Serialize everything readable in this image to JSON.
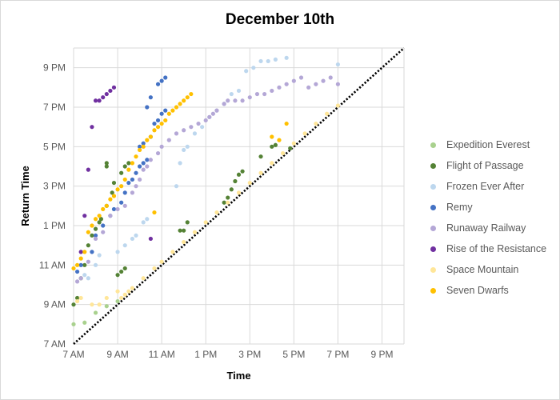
{
  "chart_data": {
    "type": "scatter",
    "title": "December 10th",
    "xlabel": "Time",
    "ylabel": "Return Time",
    "x_ticks": [
      "7 AM",
      "9 AM",
      "11 AM",
      "1 PM",
      "3 PM",
      "5 PM",
      "7 PM",
      "9 PM"
    ],
    "y_ticks": [
      "7 AM",
      "9 AM",
      "11 AM",
      "1 PM",
      "3 PM",
      "5 PM",
      "7 PM",
      "9 PM"
    ],
    "xlim": [
      "7 AM",
      "10 PM"
    ],
    "ylim": [
      "7 AM",
      "10 PM"
    ],
    "grid": true,
    "legend_position": "right",
    "reference_line": {
      "style": "dotted",
      "color": "#000000",
      "from": [
        "7:00",
        "7:00"
      ],
      "to": [
        "22:00",
        "22:00"
      ]
    },
    "series": [
      {
        "name": "Expedition Everest",
        "color": "#a9d18e",
        "points": [
          [
            "7:00",
            "8:00"
          ],
          [
            "7:30",
            "8:05"
          ],
          [
            "8:00",
            "8:35"
          ],
          [
            "8:30",
            "8:55"
          ],
          [
            "9:00",
            "9:10"
          ]
        ]
      },
      {
        "name": "Flight of Passage",
        "color": "#548235",
        "points": [
          [
            "7:00",
            "9:00"
          ],
          [
            "7:10",
            "9:20"
          ],
          [
            "7:20",
            "10:20"
          ],
          [
            "7:30",
            "11:00"
          ],
          [
            "7:40",
            "12:00"
          ],
          [
            "7:50",
            "12:30"
          ],
          [
            "8:00",
            "12:50"
          ],
          [
            "8:10",
            "13:10"
          ],
          [
            "8:15",
            "13:20"
          ],
          [
            "8:30",
            "16:00"
          ],
          [
            "8:30",
            "16:10"
          ],
          [
            "8:30",
            "14:00"
          ],
          [
            "8:45",
            "14:40"
          ],
          [
            "8:50",
            "14:70"
          ],
          [
            "9:10",
            "15:40"
          ],
          [
            "9:20",
            "16:00"
          ],
          [
            "9:30",
            "16:10"
          ],
          [
            "9:00",
            "10:30"
          ],
          [
            "9:10",
            "10:40"
          ],
          [
            "9:20",
            "10:50"
          ],
          [
            "11:50",
            "12:45"
          ],
          [
            "12:00",
            "12:45"
          ],
          [
            "12:10",
            "13:10"
          ],
          [
            "13:50",
            "14:10"
          ],
          [
            "14:00",
            "14:25"
          ],
          [
            "14:10",
            "14:50"
          ],
          [
            "14:20",
            "15:15"
          ],
          [
            "14:30",
            "15:35"
          ],
          [
            "14:40",
            "15:45"
          ],
          [
            "15:30",
            "16:30"
          ],
          [
            "16:00",
            "17:00"
          ],
          [
            "16:10",
            "17:05"
          ],
          [
            "16:50",
            "16:55"
          ]
        ]
      },
      {
        "name": "Frozen Ever After",
        "color": "#bdd7ee",
        "points": [
          [
            "7:30",
            "10:30"
          ],
          [
            "7:40",
            "10:20"
          ],
          [
            "8:00",
            "11:00"
          ],
          [
            "8:10",
            "11:30"
          ],
          [
            "9:00",
            "11:40"
          ],
          [
            "9:20",
            "12:00"
          ],
          [
            "9:40",
            "12:20"
          ],
          [
            "9:50",
            "12:30"
          ],
          [
            "10:10",
            "13:10"
          ],
          [
            "10:20",
            "13:20"
          ],
          [
            "11:40",
            "15:00"
          ],
          [
            "11:50",
            "16:10"
          ],
          [
            "12:00",
            "16:50"
          ],
          [
            "12:10",
            "17:00"
          ],
          [
            "12:30",
            "17:40"
          ],
          [
            "12:50",
            "18:00"
          ],
          [
            "13:10",
            "18:30"
          ],
          [
            "13:30",
            "18:50"
          ],
          [
            "13:50",
            "19:10"
          ],
          [
            "14:10",
            "19:40"
          ],
          [
            "14:30",
            "19:50"
          ],
          [
            "14:50",
            "20:50"
          ],
          [
            "15:10",
            "21:00"
          ],
          [
            "15:30",
            "21:20"
          ],
          [
            "15:50",
            "21:20"
          ],
          [
            "16:10",
            "21:25"
          ],
          [
            "16:40",
            "21:30"
          ],
          [
            "19:00",
            "21:10"
          ]
        ]
      },
      {
        "name": "Remy",
        "color": "#4472c4",
        "points": [
          [
            "7:10",
            "10:40"
          ],
          [
            "7:20",
            "11:00"
          ],
          [
            "7:50",
            "11:40"
          ],
          [
            "8:00",
            "12:30"
          ],
          [
            "8:20",
            "13:00"
          ],
          [
            "8:40",
            "13:30"
          ],
          [
            "8:50",
            "13:50"
          ],
          [
            "9:10",
            "14:10"
          ],
          [
            "9:20",
            "14:40"
          ],
          [
            "9:30",
            "15:10"
          ],
          [
            "9:40",
            "15:20"
          ],
          [
            "9:50",
            "15:40"
          ],
          [
            "10:00",
            "16:00"
          ],
          [
            "10:10",
            "16:10"
          ],
          [
            "10:20",
            "16:20"
          ],
          [
            "10:00",
            "17:00"
          ],
          [
            "10:10",
            "17:10"
          ],
          [
            "10:30",
            "17:30"
          ],
          [
            "10:40",
            "18:10"
          ],
          [
            "10:50",
            "18:20"
          ],
          [
            "11:00",
            "18:40"
          ],
          [
            "11:10",
            "18:50"
          ],
          [
            "10:20",
            "19:00"
          ],
          [
            "10:30",
            "19:30"
          ],
          [
            "10:50",
            "20:10"
          ],
          [
            "11:00",
            "20:20"
          ],
          [
            "11:10",
            "20:30"
          ]
        ]
      },
      {
        "name": "Runaway Railway",
        "color": "#b4a7d6",
        "points": [
          [
            "7:10",
            "10:10"
          ],
          [
            "7:20",
            "10:20"
          ],
          [
            "7:40",
            "11:10"
          ],
          [
            "8:00",
            "12:20"
          ],
          [
            "8:20",
            "12:40"
          ],
          [
            "8:40",
            "13:30"
          ],
          [
            "9:00",
            "13:50"
          ],
          [
            "9:20",
            "14:00"
          ],
          [
            "9:40",
            "14:40"
          ],
          [
            "9:50",
            "15:00"
          ],
          [
            "10:00",
            "15:20"
          ],
          [
            "10:10",
            "15:50"
          ],
          [
            "10:20",
            "16:00"
          ],
          [
            "10:30",
            "16:20"
          ],
          [
            "10:50",
            "16:40"
          ],
          [
            "11:00",
            "17:00"
          ],
          [
            "11:20",
            "17:20"
          ],
          [
            "11:40",
            "17:40"
          ],
          [
            "12:00",
            "17:50"
          ],
          [
            "12:20",
            "18:00"
          ],
          [
            "12:40",
            "18:10"
          ],
          [
            "13:00",
            "18:20"
          ],
          [
            "13:10",
            "18:30"
          ],
          [
            "13:20",
            "18:40"
          ],
          [
            "13:30",
            "18:50"
          ],
          [
            "13:50",
            "19:10"
          ],
          [
            "14:00",
            "19:20"
          ],
          [
            "14:20",
            "19:20"
          ],
          [
            "14:40",
            "19:20"
          ],
          [
            "15:00",
            "19:30"
          ],
          [
            "15:20",
            "19:40"
          ],
          [
            "15:40",
            "19:40"
          ],
          [
            "16:00",
            "19:50"
          ],
          [
            "16:20",
            "20:00"
          ],
          [
            "16:40",
            "20:10"
          ],
          [
            "17:00",
            "20:20"
          ],
          [
            "17:20",
            "20:30"
          ],
          [
            "17:40",
            "20:00"
          ],
          [
            "18:00",
            "20:10"
          ],
          [
            "18:20",
            "20:20"
          ],
          [
            "18:40",
            "20:30"
          ],
          [
            "19:00",
            "20:10"
          ]
        ]
      },
      {
        "name": "Rise of the Resistance",
        "color": "#7030a0",
        "points": [
          [
            "7:20",
            "11:40"
          ],
          [
            "7:30",
            "13:30"
          ],
          [
            "7:40",
            "15:50"
          ],
          [
            "7:50",
            "18:00"
          ],
          [
            "8:00",
            "19:20"
          ],
          [
            "8:10",
            "19:20"
          ],
          [
            "8:20",
            "19:30"
          ],
          [
            "8:30",
            "19:40"
          ],
          [
            "8:40",
            "19:50"
          ],
          [
            "8:50",
            "20:00"
          ],
          [
            "10:30",
            "12:20"
          ]
        ]
      },
      {
        "name": "Space Mountain",
        "color": "#ffe699",
        "points": [
          [
            "7:10",
            "9:10"
          ],
          [
            "7:20",
            "9:20"
          ],
          [
            "7:50",
            "9:00"
          ],
          [
            "8:10",
            "9:00"
          ],
          [
            "8:30",
            "9:20"
          ],
          [
            "9:00",
            "9:40"
          ],
          [
            "9:10",
            "9:20"
          ],
          [
            "9:20",
            "9:30"
          ],
          [
            "9:30",
            "9:40"
          ],
          [
            "9:40",
            "9:50"
          ],
          [
            "10:10",
            "10:20"
          ],
          [
            "10:40",
            "10:50"
          ],
          [
            "11:00",
            "11:10"
          ],
          [
            "11:30",
            "11:40"
          ],
          [
            "12:00",
            "12:10"
          ],
          [
            "12:30",
            "12:40"
          ],
          [
            "13:00",
            "13:10"
          ],
          [
            "13:30",
            "13:40"
          ],
          [
            "14:00",
            "14:10"
          ],
          [
            "14:30",
            "14:40"
          ],
          [
            "15:00",
            "15:10"
          ],
          [
            "15:30",
            "15:40"
          ],
          [
            "16:00",
            "16:10"
          ],
          [
            "16:30",
            "16:40"
          ],
          [
            "17:00",
            "17:10"
          ],
          [
            "17:30",
            "17:40"
          ],
          [
            "18:00",
            "18:10"
          ],
          [
            "18:30",
            "18:40"
          ],
          [
            "19:00",
            "19:05"
          ]
        ]
      },
      {
        "name": "Seven Dwarfs",
        "color": "#ffc000",
        "points": [
          [
            "7:00",
            "10:50"
          ],
          [
            "7:10",
            "11:00"
          ],
          [
            "7:20",
            "11:20"
          ],
          [
            "7:30",
            "11:40"
          ],
          [
            "7:40",
            "12:40"
          ],
          [
            "7:50",
            "13:00"
          ],
          [
            "8:00",
            "13:20"
          ],
          [
            "8:10",
            "13:30"
          ],
          [
            "8:20",
            "13:50"
          ],
          [
            "8:30",
            "14:00"
          ],
          [
            "8:40",
            "14:20"
          ],
          [
            "8:50",
            "14:30"
          ],
          [
            "9:00",
            "14:50"
          ],
          [
            "9:10",
            "15:00"
          ],
          [
            "9:20",
            "15:20"
          ],
          [
            "9:30",
            "15:50"
          ],
          [
            "9:40",
            "16:10"
          ],
          [
            "9:50",
            "16:30"
          ],
          [
            "10:00",
            "16:50"
          ],
          [
            "10:10",
            "17:00"
          ],
          [
            "10:20",
            "17:20"
          ],
          [
            "10:30",
            "17:30"
          ],
          [
            "10:40",
            "17:50"
          ],
          [
            "10:50",
            "18:00"
          ],
          [
            "11:00",
            "18:10"
          ],
          [
            "11:10",
            "18:20"
          ],
          [
            "11:20",
            "18:40"
          ],
          [
            "11:30",
            "18:50"
          ],
          [
            "11:40",
            "19:00"
          ],
          [
            "11:50",
            "19:10"
          ],
          [
            "12:00",
            "19:20"
          ],
          [
            "12:10",
            "19:30"
          ],
          [
            "12:20",
            "19:40"
          ],
          [
            "10:40",
            "13:40"
          ],
          [
            "16:00",
            "17:30"
          ],
          [
            "16:20",
            "17:20"
          ],
          [
            "16:40",
            "18:10"
          ]
        ]
      }
    ]
  }
}
